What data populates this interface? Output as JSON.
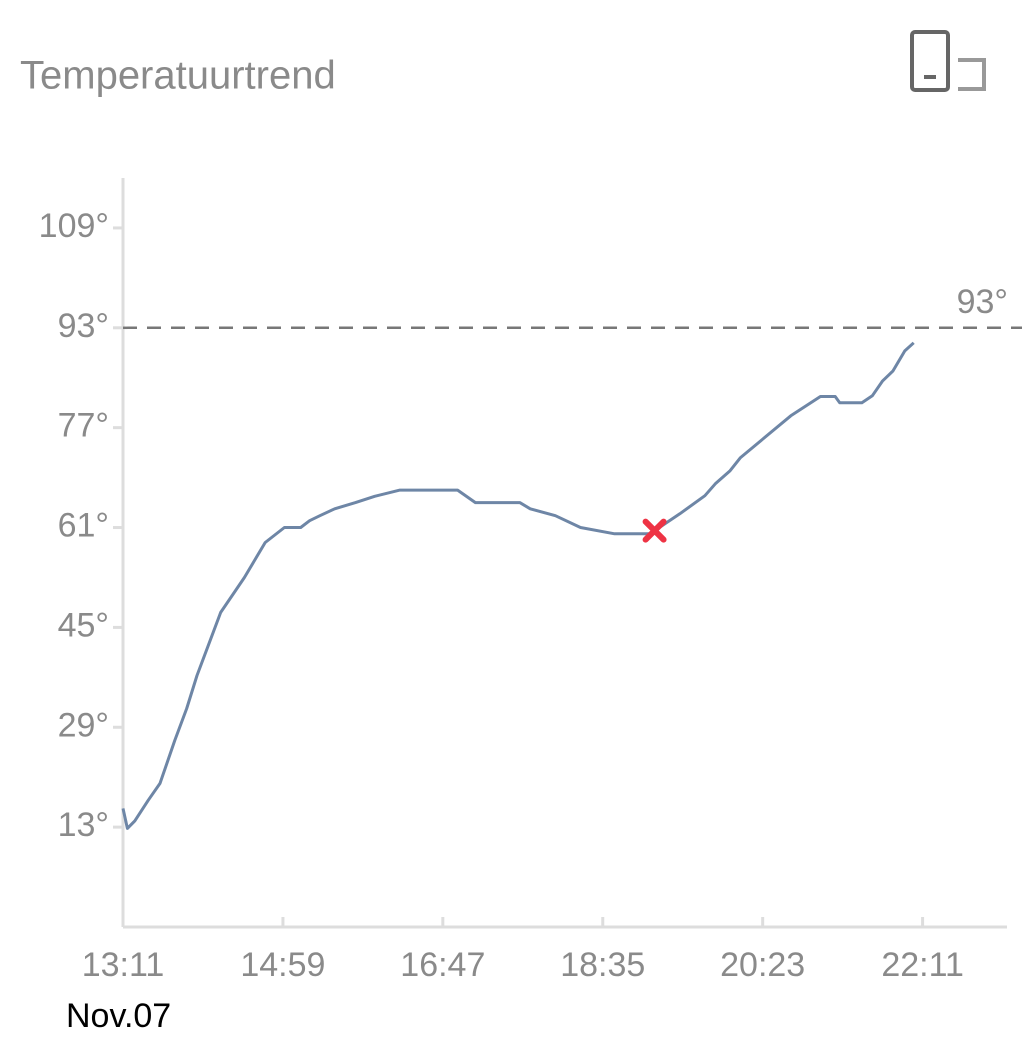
{
  "chart_data": {
    "type": "line",
    "title": "Temperatuurtrend",
    "date_label": "Nov.07",
    "color": "#6e86a6",
    "x": [
      "13:11",
      "13:14",
      "13:19",
      "13:28",
      "13:36",
      "13:46",
      "13:54",
      "14:01",
      "14:17",
      "14:27",
      "14:33",
      "14:47",
      "15:00",
      "15:11",
      "15:17",
      "15:24",
      "15:34",
      "15:48",
      "16:01",
      "16:18",
      "16:57",
      "17:09",
      "17:39",
      "17:46",
      "18:03",
      "18:20",
      "18:43",
      "19:07",
      "19:27",
      "19:44",
      "19:51",
      "20:01",
      "20:08",
      "20:42",
      "21:02",
      "21:12",
      "21:15",
      "21:30",
      "21:37",
      "21:44",
      "21:51",
      "21:59",
      "22:05"
    ],
    "values": [
      16.0,
      12.8,
      14,
      17.3,
      20,
      26.9,
      32,
      37.3,
      47.4,
      50.9,
      53,
      58.6,
      61,
      61,
      62.1,
      62.9,
      64,
      65,
      66,
      67,
      67,
      65,
      65,
      64,
      62.9,
      61,
      60,
      60,
      63.2,
      66.1,
      68,
      70.1,
      72.2,
      78.9,
      82,
      82,
      81,
      81,
      82.1,
      84.5,
      86.1,
      89.3,
      90.6
    ],
    "xlim": [
      "13:11",
      "23:08"
    ],
    "xticks": [
      "13:11",
      "14:59",
      "16:47",
      "18:35",
      "20:23",
      "22:11"
    ],
    "ylim": [
      -3,
      117
    ],
    "yticks": [
      {
        "value": 13,
        "label": "13°"
      },
      {
        "value": 29,
        "label": "29°"
      },
      {
        "value": 45,
        "label": "45°"
      },
      {
        "value": 61,
        "label": "61°"
      },
      {
        "value": 77,
        "label": "77°"
      },
      {
        "value": 93,
        "label": "93°"
      },
      {
        "value": 109,
        "label": "109°"
      }
    ],
    "reference_line": {
      "value": 93,
      "label": "93°",
      "color": "#777777"
    },
    "marker": {
      "x": "19:10",
      "y": 60.5,
      "color": "#ee3344"
    },
    "grid": false
  }
}
